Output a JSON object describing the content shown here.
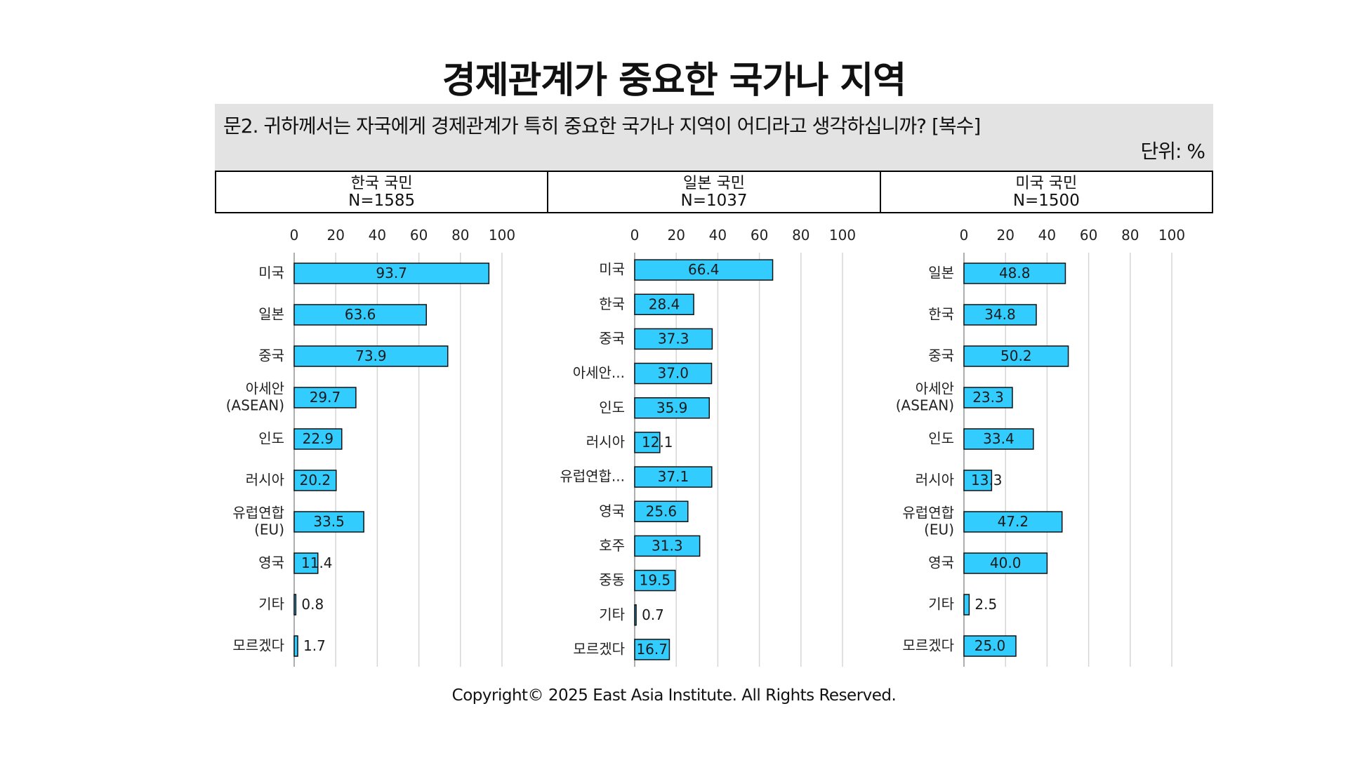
{
  "title": "경제관계가 중요한 국가나 지역",
  "question": "문2. 귀하께서는 자국에게 경제관계가 특히 중요한 국가나 지역이 어디라고 생각하십니까? [복수]",
  "unit": "단위: %",
  "groups": [
    {
      "name": "한국 국민",
      "n": "N=1585"
    },
    {
      "name": "일본 국민",
      "n": "N=1037"
    },
    {
      "name": "미국 국민",
      "n": "N=1500"
    }
  ],
  "chart_data": [
    {
      "type": "bar",
      "orientation": "horizontal",
      "xlim": [
        0,
        100
      ],
      "ticks": [
        "0",
        "20",
        "40",
        "60",
        "80",
        "100"
      ],
      "grid": true,
      "bar_color": "#33ccff",
      "categories": [
        "미국",
        "일본",
        "중국",
        "아세안\n(ASEAN)",
        "인도",
        "러시아",
        "유럽연합\n(EU)",
        "영국",
        "기타",
        "모르겠다"
      ],
      "values": [
        93.7,
        63.6,
        73.9,
        29.7,
        22.9,
        20.2,
        33.5,
        11.4,
        0.8,
        1.7
      ]
    },
    {
      "type": "bar",
      "orientation": "horizontal",
      "xlim": [
        0,
        100
      ],
      "ticks": [
        "0",
        "20",
        "40",
        "60",
        "80",
        "100"
      ],
      "grid": true,
      "bar_color": "#33ccff",
      "categories": [
        "미국",
        "한국",
        "중국",
        "아세안...",
        "인도",
        "러시아",
        "유럽연합...",
        "영국",
        "호주",
        "중동",
        "기타",
        "모르겠다"
      ],
      "values": [
        66.4,
        28.4,
        37.3,
        37.0,
        35.9,
        12.1,
        37.1,
        25.6,
        31.3,
        19.5,
        0.7,
        16.7
      ]
    },
    {
      "type": "bar",
      "orientation": "horizontal",
      "xlim": [
        0,
        100
      ],
      "ticks": [
        "0",
        "20",
        "40",
        "60",
        "80",
        "100"
      ],
      "grid": true,
      "bar_color": "#33ccff",
      "categories": [
        "일본",
        "한국",
        "중국",
        "아세안\n(ASEAN)",
        "인도",
        "러시아",
        "유럽연합\n(EU)",
        "영국",
        "기타",
        "모르겠다"
      ],
      "values": [
        48.8,
        34.8,
        50.2,
        23.3,
        33.4,
        13.3,
        47.2,
        40.0,
        2.5,
        25.0
      ]
    }
  ],
  "copyright": "Copyright© 2025 East Asia Institute. All Rights Reserved."
}
